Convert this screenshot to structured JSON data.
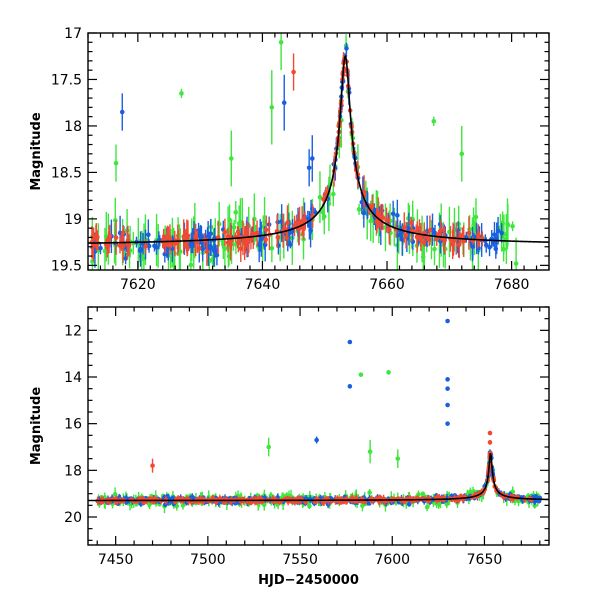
{
  "colors": {
    "blue": "#1a5fe0",
    "green": "#3ee63e",
    "red": "#f24a32",
    "model": "#000000"
  },
  "chart_data": [
    {
      "id": "top",
      "type": "scatter",
      "title": "",
      "xlabel": "",
      "ylabel": "Magnitude",
      "xlim": [
        7612,
        7686
      ],
      "ylim": [
        19.55,
        17.0
      ],
      "y_inverted": true,
      "xticks": [
        7620,
        7640,
        7660,
        7680
      ],
      "yticks": [
        17,
        17.5,
        18,
        18.5,
        19,
        19.5
      ],
      "yticklabels": [
        "17",
        "17.5",
        "18",
        "18.5",
        "19",
        "19.5"
      ],
      "baseline_mag": 19.3,
      "model_curve": {
        "peak_x": 7653.3,
        "peak_mag": 17.25,
        "baseline_mag": 19.3,
        "width_days": 1.0
      },
      "outliers": [
        {
          "series": "blue",
          "x": 7617.5,
          "y": 17.85,
          "err": 0.2
        },
        {
          "series": "green",
          "x": 7627.0,
          "y": 17.65,
          "err": 0.05
        },
        {
          "series": "green",
          "x": 7643.0,
          "y": 17.1,
          "err": 0.3
        },
        {
          "series": "red",
          "x": 7645.0,
          "y": 17.42,
          "err": 0.2
        },
        {
          "series": "blue",
          "x": 7643.5,
          "y": 17.75,
          "err": 0.3
        },
        {
          "series": "green",
          "x": 7641.5,
          "y": 17.8,
          "err": 0.4
        },
        {
          "series": "blue",
          "x": 7648.0,
          "y": 18.35,
          "err": 0.25
        },
        {
          "series": "green",
          "x": 7667.5,
          "y": 17.95,
          "err": 0.05
        },
        {
          "series": "green",
          "x": 7635.0,
          "y": 18.35,
          "err": 0.3
        },
        {
          "series": "green",
          "x": 7616.5,
          "y": 18.4,
          "err": 0.2
        },
        {
          "series": "green",
          "x": 7672.0,
          "y": 18.3,
          "err": 0.3
        },
        {
          "series": "blue",
          "x": 7647.5,
          "y": 18.45,
          "err": 0.2
        }
      ]
    },
    {
      "id": "bottom",
      "type": "scatter",
      "title": "",
      "xlabel": "HJD−2450000",
      "ylabel": "Magnitude",
      "xlim": [
        7435,
        7685
      ],
      "ylim": [
        21.2,
        11.0
      ],
      "y_inverted": true,
      "xticks": [
        7450,
        7500,
        7550,
        7600,
        7650
      ],
      "yticks": [
        12,
        14,
        16,
        18,
        20
      ],
      "yticklabels": [
        "12",
        "14",
        "16",
        "18",
        "20"
      ],
      "baseline_mag": 19.3,
      "model_curve": {
        "peak_x": 7653.3,
        "peak_mag": 17.25,
        "baseline_mag": 19.3,
        "width_days": 1.0
      },
      "outliers": [
        {
          "series": "blue",
          "x": 7577.0,
          "y": 12.5,
          "err": 0.05
        },
        {
          "series": "blue",
          "x": 7577.0,
          "y": 14.4,
          "err": 0.05
        },
        {
          "series": "green",
          "x": 7583.0,
          "y": 13.9,
          "err": 0.05
        },
        {
          "series": "green",
          "x": 7598.0,
          "y": 13.8,
          "err": 0.05
        },
        {
          "series": "blue",
          "x": 7630.0,
          "y": 11.6,
          "err": 0.05
        },
        {
          "series": "blue",
          "x": 7630.0,
          "y": 14.1,
          "err": 0.05
        },
        {
          "series": "blue",
          "x": 7630.0,
          "y": 14.5,
          "err": 0.05
        },
        {
          "series": "blue",
          "x": 7630.0,
          "y": 15.2,
          "err": 0.05
        },
        {
          "series": "blue",
          "x": 7630.0,
          "y": 16.0,
          "err": 0.05
        },
        {
          "series": "blue",
          "x": 7559.0,
          "y": 16.7,
          "err": 0.15
        },
        {
          "series": "red",
          "x": 7470.0,
          "y": 17.8,
          "err": 0.3
        },
        {
          "series": "red",
          "x": 7653.0,
          "y": 16.4,
          "err": 0.1
        },
        {
          "series": "red",
          "x": 7653.0,
          "y": 16.8,
          "err": 0.1
        },
        {
          "series": "blue",
          "x": 7653.0,
          "y": 17.3,
          "err": 0.1
        },
        {
          "series": "green",
          "x": 7533.0,
          "y": 17.0,
          "err": 0.4
        },
        {
          "series": "green",
          "x": 7603.0,
          "y": 17.5,
          "err": 0.4
        },
        {
          "series": "green",
          "x": 7588.0,
          "y": 17.2,
          "err": 0.5
        }
      ]
    }
  ]
}
